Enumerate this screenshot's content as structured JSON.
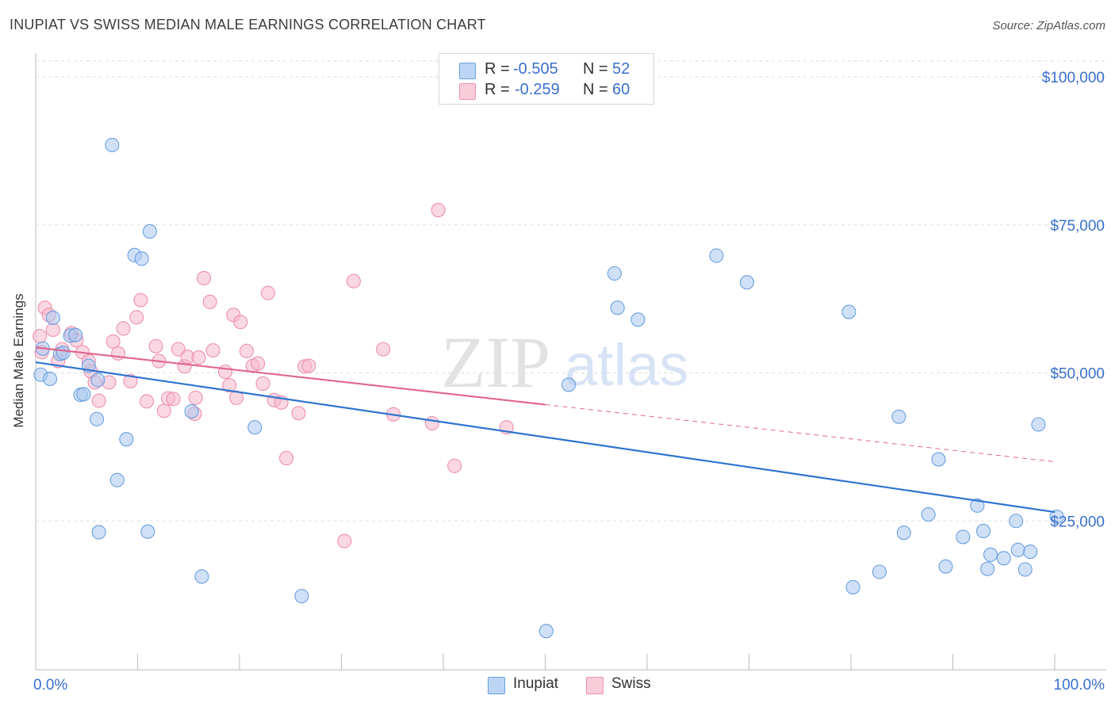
{
  "title": "INUPIAT VS SWISS MEDIAN MALE EARNINGS CORRELATION CHART",
  "source": "Source: ZipAtlas.com",
  "watermark": {
    "zip": "ZIP",
    "atlas": "atlas"
  },
  "legend": {
    "rows": [
      {
        "r_label": "R = ",
        "r_value": "-0.505",
        "n_label": "N = ",
        "n_value": "52"
      },
      {
        "r_label": "R = ",
        "r_value": "-0.259",
        "n_label": "N = ",
        "n_value": "60"
      }
    ]
  },
  "bottom_legend": {
    "inupiat": "Inupiat",
    "swiss": "Swiss"
  },
  "colors": {
    "inupiat_fill": "#a9c8f0",
    "inupiat_stroke": "#6a9fe0",
    "inupiat_line": "#2f74d0",
    "swiss_fill": "#f6b8cc",
    "swiss_stroke": "#ee8fae",
    "swiss_line": "#e0658f",
    "axis_text": "#3a6fcd",
    "grid": "#dddddd"
  },
  "chart_data": {
    "type": "scatter",
    "title": "INUPIAT VS SWISS MEDIAN MALE EARNINGS CORRELATION CHART",
    "xlabel": "",
    "ylabel": "Median Male Earnings",
    "xlim": [
      0,
      100
    ],
    "ylim": [
      0,
      105000
    ],
    "x_tick_labels": [
      "0.0%",
      "100.0%"
    ],
    "y_ticks": [
      25000,
      50000,
      75000,
      100000
    ],
    "y_tick_labels": [
      "$25,000",
      "$50,000",
      "$75,000",
      "$100,000"
    ],
    "grid": true,
    "legend_position": "top-center",
    "series": [
      {
        "name": "Inupiat",
        "r": -0.505,
        "n": 52,
        "trend": {
          "x": [
            0,
            100
          ],
          "y": [
            51800,
            26500
          ],
          "dashed_after": null
        },
        "points": [
          [
            0.5,
            49700
          ],
          [
            0.7,
            54100
          ],
          [
            1.4,
            49000
          ],
          [
            1.7,
            59300
          ],
          [
            2.4,
            53200
          ],
          [
            2.7,
            53400
          ],
          [
            3.4,
            56300
          ],
          [
            3.9,
            56400
          ],
          [
            4.4,
            46300
          ],
          [
            4.7,
            46400
          ],
          [
            5.2,
            51200
          ],
          [
            6.1,
            48800
          ],
          [
            6.0,
            42200
          ],
          [
            6.2,
            23100
          ],
          [
            7.5,
            88500
          ],
          [
            8.0,
            31900
          ],
          [
            8.9,
            38800
          ],
          [
            9.7,
            69900
          ],
          [
            10.4,
            69300
          ],
          [
            11.0,
            23200
          ],
          [
            11.2,
            73900
          ],
          [
            15.3,
            43500
          ],
          [
            16.3,
            15600
          ],
          [
            21.5,
            40800
          ],
          [
            26.1,
            12300
          ],
          [
            50.1,
            6400
          ],
          [
            52.3,
            48000
          ],
          [
            56.8,
            66800
          ],
          [
            57.1,
            61000
          ],
          [
            59.1,
            59000
          ],
          [
            66.8,
            69800
          ],
          [
            69.8,
            65300
          ],
          [
            79.8,
            60300
          ],
          [
            80.2,
            13800
          ],
          [
            82.8,
            16400
          ],
          [
            84.7,
            42600
          ],
          [
            85.2,
            23000
          ],
          [
            87.6,
            26100
          ],
          [
            88.6,
            35400
          ],
          [
            89.3,
            17300
          ],
          [
            91.0,
            22300
          ],
          [
            92.4,
            27600
          ],
          [
            93.0,
            23300
          ],
          [
            93.4,
            16900
          ],
          [
            93.7,
            19300
          ],
          [
            95.0,
            18700
          ],
          [
            96.2,
            25000
          ],
          [
            96.4,
            20100
          ],
          [
            97.1,
            16800
          ],
          [
            97.6,
            19800
          ],
          [
            98.4,
            41300
          ],
          [
            100.2,
            25700
          ]
        ]
      },
      {
        "name": "Swiss",
        "r": -0.259,
        "n": 60,
        "trend": {
          "x": [
            0,
            100
          ],
          "y": [
            54300,
            35000
          ],
          "dashed_after": 50
        },
        "points": [
          [
            0.4,
            56200
          ],
          [
            0.6,
            53500
          ],
          [
            0.9,
            61000
          ],
          [
            1.3,
            59800
          ],
          [
            1.7,
            57300
          ],
          [
            2.2,
            52000
          ],
          [
            2.6,
            54000
          ],
          [
            3.5,
            56700
          ],
          [
            4.0,
            55500
          ],
          [
            4.6,
            53500
          ],
          [
            5.2,
            52000
          ],
          [
            5.4,
            50300
          ],
          [
            5.8,
            48400
          ],
          [
            6.2,
            45300
          ],
          [
            7.2,
            48400
          ],
          [
            7.6,
            55300
          ],
          [
            8.1,
            53300
          ],
          [
            8.6,
            57500
          ],
          [
            9.3,
            48600
          ],
          [
            9.9,
            59400
          ],
          [
            10.3,
            62300
          ],
          [
            10.9,
            45200
          ],
          [
            11.8,
            54500
          ],
          [
            12.1,
            52000
          ],
          [
            12.6,
            43600
          ],
          [
            13.0,
            45700
          ],
          [
            13.5,
            45600
          ],
          [
            14.0,
            54000
          ],
          [
            14.6,
            51100
          ],
          [
            14.9,
            52700
          ],
          [
            15.6,
            43100
          ],
          [
            15.7,
            45800
          ],
          [
            16.0,
            52600
          ],
          [
            16.5,
            66000
          ],
          [
            17.1,
            62000
          ],
          [
            17.4,
            53800
          ],
          [
            18.6,
            50200
          ],
          [
            19.0,
            47900
          ],
          [
            19.4,
            59800
          ],
          [
            19.7,
            45800
          ],
          [
            20.1,
            58600
          ],
          [
            20.7,
            53700
          ],
          [
            21.3,
            51200
          ],
          [
            21.8,
            51600
          ],
          [
            22.3,
            48200
          ],
          [
            22.8,
            63500
          ],
          [
            23.4,
            45400
          ],
          [
            24.1,
            45000
          ],
          [
            24.6,
            35600
          ],
          [
            25.8,
            43200
          ],
          [
            26.4,
            51100
          ],
          [
            26.8,
            51200
          ],
          [
            30.3,
            21600
          ],
          [
            31.2,
            65500
          ],
          [
            34.1,
            54000
          ],
          [
            35.1,
            43000
          ],
          [
            38.9,
            41500
          ],
          [
            39.5,
            77500
          ],
          [
            41.1,
            34300
          ],
          [
            46.2,
            40800
          ]
        ]
      }
    ]
  }
}
